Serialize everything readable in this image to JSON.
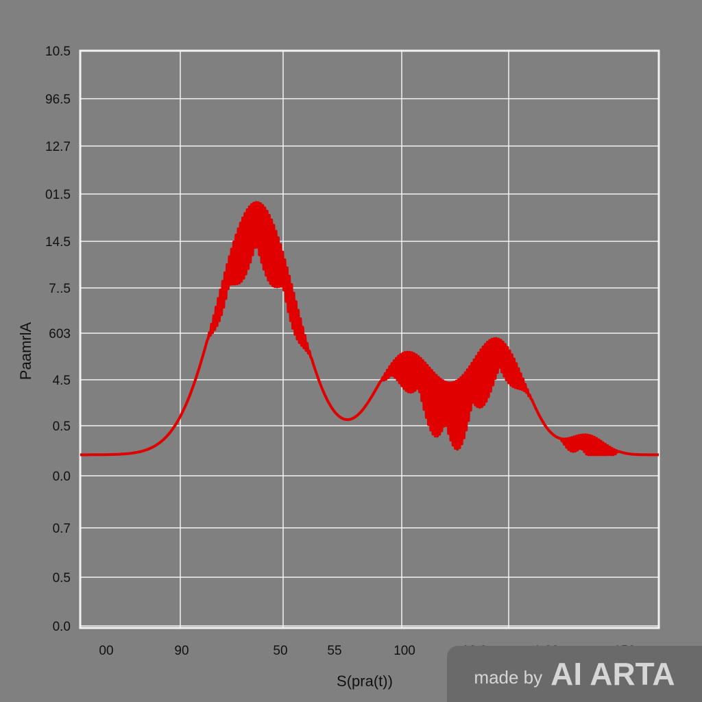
{
  "chart_data": {
    "type": "line",
    "ylabel": "PaamrlA",
    "xlabel": "S(pra(t))",
    "x_tick_labels": [
      "00",
      "90",
      "50",
      "55",
      "100",
      "10.0",
      "1.00",
      "150"
    ],
    "y_tick_labels": [
      "10.5",
      "96.5",
      "12.7",
      "01.5",
      "14.5",
      "7..5",
      "603",
      "4.5",
      "0.5",
      "0.0",
      "0.7",
      "0.5",
      "0.0"
    ],
    "grid": true,
    "series": [
      {
        "color": "#e00000",
        "peaks": [
          {
            "center": 0.305,
            "width": 0.068,
            "height": 0.795
          },
          {
            "center": 0.565,
            "width": 0.055,
            "height": 0.32
          },
          {
            "center": 0.72,
            "width": 0.05,
            "height": 0.36
          },
          {
            "center": 0.875,
            "width": 0.03,
            "height": 0.06
          }
        ],
        "baseline": 0.3,
        "oscillation_regions": [
          {
            "start": 0.22,
            "end": 0.4,
            "amplitude": 0.12
          },
          {
            "start": 0.52,
            "end": 0.78,
            "amplitude": 0.12
          },
          {
            "start": 0.83,
            "end": 0.93,
            "amplitude": 0.04
          }
        ]
      }
    ]
  },
  "watermark": {
    "prefix": "made by",
    "brand": "AI ARTA"
  },
  "colors": {
    "background": "#808080",
    "grid": "#f2f2f2",
    "line": "#e00000",
    "watermark_bg": "#6a6a6a"
  }
}
